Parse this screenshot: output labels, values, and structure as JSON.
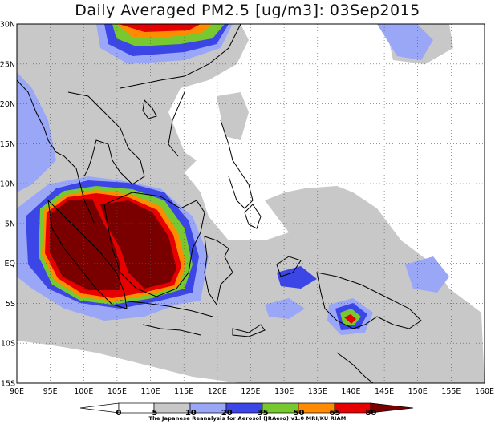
{
  "title": "Daily Averaged PM2.5 [ug/m3]: 03Sep2015",
  "credit": "The Japanese Reanalysis for Aerosol (JRAero) v1.0 MRI/KU RIAM",
  "map": {
    "lon_range": [
      90,
      160
    ],
    "lat_range": [
      -15,
      30
    ],
    "lon_ticks": [
      "90E",
      "95E",
      "100E",
      "105E",
      "110E",
      "115E",
      "120E",
      "125E",
      "130E",
      "135E",
      "140E",
      "145E",
      "150E",
      "155E",
      "160E"
    ],
    "lat_ticks": [
      "30N",
      "25N",
      "20N",
      "15N",
      "10N",
      "5N",
      "EQ",
      "5S",
      "10S",
      "15S"
    ],
    "gridlines": "dotted"
  },
  "colorbar": {
    "levels": [
      "0",
      "5",
      "10",
      "20",
      "35",
      "50",
      "65",
      "80"
    ],
    "colors": {
      "below_5": "#ffffff",
      "5_10": "#ffffff",
      "10_20": "#c8c8c8",
      "20_35": "#9aa6f6",
      "35_50": "#3c46e6",
      "50_65": "#78c830",
      "65_80": "#ff8c00",
      "80_plus": "#e60000",
      "extreme": "#7a0000"
    }
  }
}
